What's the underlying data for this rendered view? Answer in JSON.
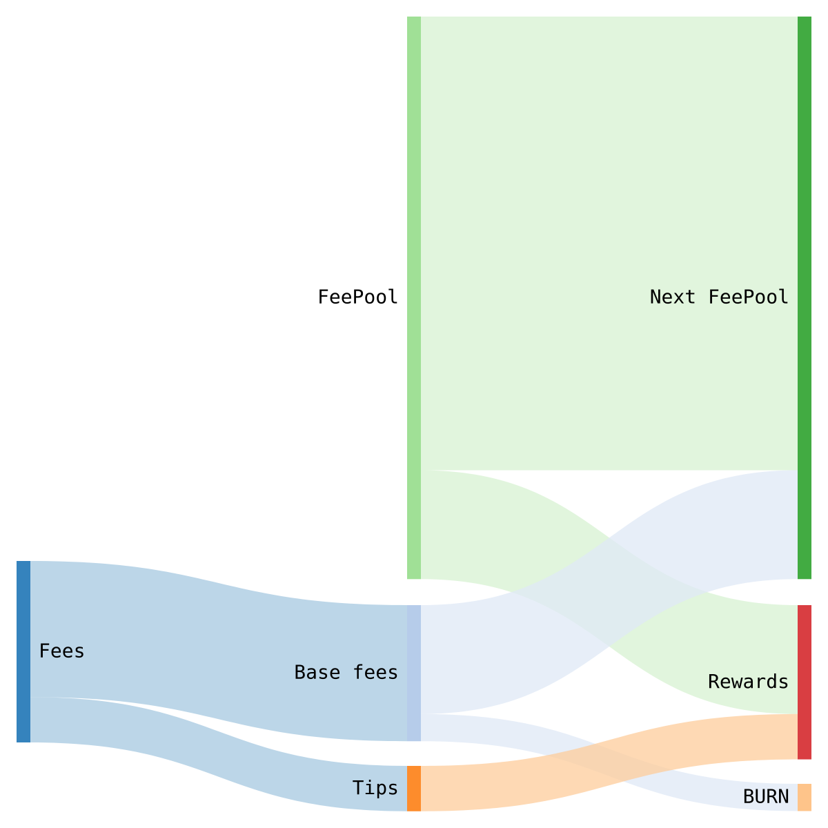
{
  "chart_data": {
    "type": "sankey",
    "nodes": [
      {
        "id": "fees",
        "label": "Fees",
        "color": "#3583bd"
      },
      {
        "id": "feepool",
        "label": "FeePool",
        "color": "#a0e096"
      },
      {
        "id": "base",
        "label": "Base fees",
        "color": "#b6ccea"
      },
      {
        "id": "tips",
        "label": "Tips",
        "color": "#fd8c2c"
      },
      {
        "id": "next",
        "label": "Next FeePool",
        "color": "#42ab42"
      },
      {
        "id": "rewards",
        "label": "Rewards",
        "color": "#d93e42"
      },
      {
        "id": "burn",
        "label": "BURN",
        "color": "#fec48a"
      }
    ],
    "links": [
      {
        "source": "fees",
        "target": "base",
        "value": 15
      },
      {
        "source": "fees",
        "target": "tips",
        "value": 5
      },
      {
        "source": "feepool",
        "target": "next",
        "value": 50
      },
      {
        "source": "feepool",
        "target": "rewards",
        "value": 12
      },
      {
        "source": "base",
        "target": "next",
        "value": 12
      },
      {
        "source": "base",
        "target": "rewards",
        "value": 0
      },
      {
        "source": "base",
        "target": "burn",
        "value": 3
      },
      {
        "source": "tips",
        "target": "rewards",
        "value": 5
      }
    ],
    "link_colors": {
      "fees": "#a5c8e0",
      "feepool": "#d7f1d2",
      "base": "#dfe8f5",
      "tips": "#fecc9b"
    }
  }
}
